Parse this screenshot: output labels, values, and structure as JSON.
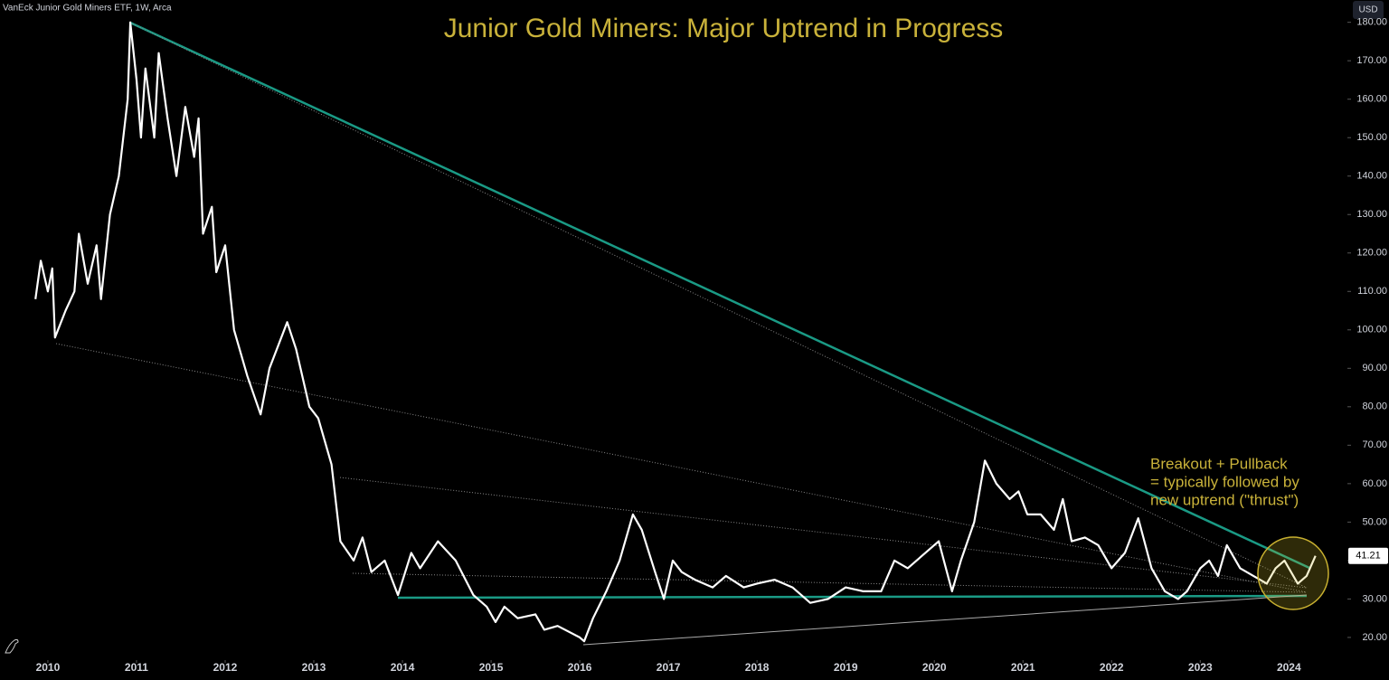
{
  "chart_data": {
    "type": "line",
    "source": "VanEck Junior Gold Miners ETF, 1W, Arca",
    "title": "Junior Gold Miners: Major Uptrend in Progress",
    "currency": "USD",
    "annotation": [
      "Breakout + Pullback",
      "= typically followed by",
      "new uptrend (\"thrust\")"
    ],
    "color": "#ffffff",
    "x": [
      2009.86,
      2009.92,
      2010.0,
      2010.05,
      2010.08,
      2010.2,
      2010.3,
      2010.35,
      2010.45,
      2010.55,
      2010.6,
      2010.7,
      2010.8,
      2010.9,
      2010.93,
      2011.0,
      2011.05,
      2011.1,
      2011.2,
      2011.25,
      2011.35,
      2011.45,
      2011.55,
      2011.65,
      2011.7,
      2011.75,
      2011.85,
      2011.9,
      2012.0,
      2012.1,
      2012.25,
      2012.4,
      2012.5,
      2012.7,
      2012.8,
      2012.95,
      2013.05,
      2013.2,
      2013.3,
      2013.45,
      2013.55,
      2013.65,
      2013.8,
      2013.95,
      2014.1,
      2014.2,
      2014.4,
      2014.6,
      2014.8,
      2014.95,
      2015.05,
      2015.15,
      2015.3,
      2015.5,
      2015.6,
      2015.75,
      2016.0,
      2016.05,
      2016.15,
      2016.3,
      2016.45,
      2016.6,
      2016.7,
      2016.85,
      2016.95,
      2017.05,
      2017.15,
      2017.3,
      2017.5,
      2017.65,
      2017.85,
      2018.0,
      2018.2,
      2018.4,
      2018.6,
      2018.8,
      2019.0,
      2019.2,
      2019.4,
      2019.55,
      2019.7,
      2019.85,
      2020.05,
      2020.2,
      2020.3,
      2020.45,
      2020.57,
      2020.7,
      2020.85,
      2020.95,
      2021.05,
      2021.2,
      2021.35,
      2021.45,
      2021.55,
      2021.7,
      2021.85,
      2022.0,
      2022.15,
      2022.3,
      2022.45,
      2022.6,
      2022.75,
      2022.85,
      2023.0,
      2023.1,
      2023.2,
      2023.3,
      2023.45,
      2023.6,
      2023.75,
      2023.85,
      2023.95,
      2024.1,
      2024.2,
      2024.3
    ],
    "values": [
      108,
      118,
      110,
      116,
      98,
      105,
      110,
      125,
      112,
      122,
      108,
      130,
      140,
      160,
      180,
      165,
      150,
      168,
      150,
      172,
      155,
      140,
      158,
      145,
      155,
      125,
      132,
      115,
      122,
      100,
      88,
      78,
      90,
      102,
      95,
      80,
      77,
      65,
      45,
      40,
      46,
      37,
      40,
      31,
      42,
      38,
      45,
      40,
      31,
      28,
      24,
      28,
      25,
      26,
      22,
      23,
      20,
      19,
      25,
      32,
      40,
      52,
      48,
      37,
      30,
      40,
      37,
      35,
      33,
      36,
      33,
      34,
      35,
      33,
      29,
      30,
      33,
      32,
      32,
      40,
      38,
      41,
      45,
      32,
      40,
      50,
      66,
      60,
      56,
      58,
      52,
      52,
      48,
      56,
      45,
      46,
      44,
      38,
      42,
      51,
      38,
      32,
      30,
      32,
      38,
      40,
      36,
      44,
      38,
      36,
      34,
      38,
      40,
      34,
      36,
      41.21
    ],
    "xlim": [
      2009.46,
      2024.66
    ],
    "xticks": [
      2010,
      2011,
      2012,
      2013,
      2014,
      2015,
      2016,
      2017,
      2018,
      2019,
      2020,
      2021,
      2022,
      2023,
      2024
    ],
    "ylim": [
      14.1,
      185.8
    ],
    "yticks": [
      {
        "value": 20,
        "label": "20.00"
      },
      {
        "value": 30,
        "label": "30.00"
      },
      {
        "value": 40,
        "label": "40.00"
      },
      {
        "value": 50,
        "label": "50.00"
      },
      {
        "value": 60,
        "label": "60.00"
      },
      {
        "value": 70,
        "label": "70.00"
      },
      {
        "value": 80,
        "label": "80.00"
      },
      {
        "value": 90,
        "label": "90.00"
      },
      {
        "value": 100,
        "label": "100.00"
      },
      {
        "value": 110,
        "label": "110.00"
      },
      {
        "value": 120,
        "label": "120.00"
      },
      {
        "value": 130,
        "label": "130.00"
      },
      {
        "value": 140,
        "label": "140.00"
      },
      {
        "value": 150,
        "label": "150.00"
      },
      {
        "value": 160,
        "label": "160.00"
      },
      {
        "value": 170,
        "label": "170.00"
      },
      {
        "value": 180,
        "label": "180.00"
      }
    ]
  }
}
